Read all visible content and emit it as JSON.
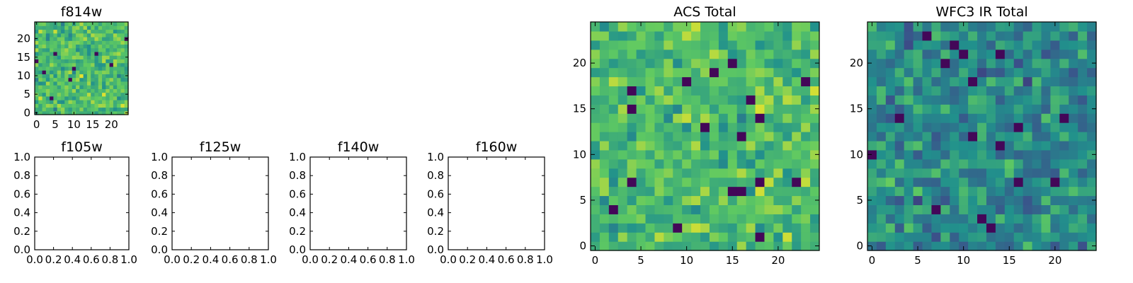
{
  "chart_data": [
    {
      "type": "heatmap",
      "title": "f814w",
      "xlabel": "",
      "ylabel": "",
      "grid": [
        25,
        25
      ],
      "xlim": [
        -0.5,
        24.5
      ],
      "ylim": [
        -0.5,
        24.5
      ],
      "xticks": [
        0,
        5,
        10,
        15,
        20
      ],
      "yticks": [
        0,
        5,
        10,
        15,
        20
      ],
      "colormap": "viridis",
      "values_note_seed": 11
    },
    {
      "type": "scatter",
      "title": "f105w",
      "xlim": [
        0,
        1
      ],
      "ylim": [
        0,
        1
      ],
      "xticks": [
        "0.0",
        "0.2",
        "0.4",
        "0.6",
        "0.8",
        "1.0"
      ],
      "yticks": [
        "0.0",
        "0.2",
        "0.4",
        "0.6",
        "0.8",
        "1.0"
      ],
      "series": []
    },
    {
      "type": "scatter",
      "title": "f125w",
      "xlim": [
        0,
        1
      ],
      "ylim": [
        0,
        1
      ],
      "xticks": [
        "0.0",
        "0.2",
        "0.4",
        "0.6",
        "0.8",
        "1.0"
      ],
      "yticks": [
        "0.0",
        "0.2",
        "0.4",
        "0.6",
        "0.8",
        "1.0"
      ],
      "series": []
    },
    {
      "type": "scatter",
      "title": "f140w",
      "xlim": [
        0,
        1
      ],
      "ylim": [
        0,
        1
      ],
      "xticks": [
        "0.0",
        "0.2",
        "0.4",
        "0.6",
        "0.8",
        "1.0"
      ],
      "yticks": [
        "0.0",
        "0.2",
        "0.4",
        "0.6",
        "0.8",
        "1.0"
      ],
      "series": []
    },
    {
      "type": "scatter",
      "title": "f160w",
      "xlim": [
        0,
        1
      ],
      "ylim": [
        0,
        1
      ],
      "xticks": [
        "0.0",
        "0.2",
        "0.4",
        "0.6",
        "0.8",
        "1.0"
      ],
      "yticks": [
        "0.0",
        "0.2",
        "0.4",
        "0.6",
        "0.8",
        "1.0"
      ],
      "series": []
    },
    {
      "type": "heatmap",
      "title": "ACS Total",
      "grid": [
        25,
        25
      ],
      "xlim": [
        -0.5,
        24.5
      ],
      "ylim": [
        -0.5,
        24.5
      ],
      "xticks": [
        0,
        5,
        10,
        15,
        20
      ],
      "yticks": [
        0,
        5,
        10,
        15,
        20
      ],
      "colormap": "viridis",
      "values_note_seed": 23
    },
    {
      "type": "heatmap",
      "title": "WFC3 IR Total",
      "grid": [
        25,
        25
      ],
      "xlim": [
        -0.5,
        24.5
      ],
      "ylim": [
        -0.5,
        24.5
      ],
      "xticks": [
        0,
        5,
        10,
        15,
        20
      ],
      "yticks": [
        0,
        5,
        10,
        15,
        20
      ],
      "colormap": "viridis",
      "values_note_seed": 37
    }
  ]
}
